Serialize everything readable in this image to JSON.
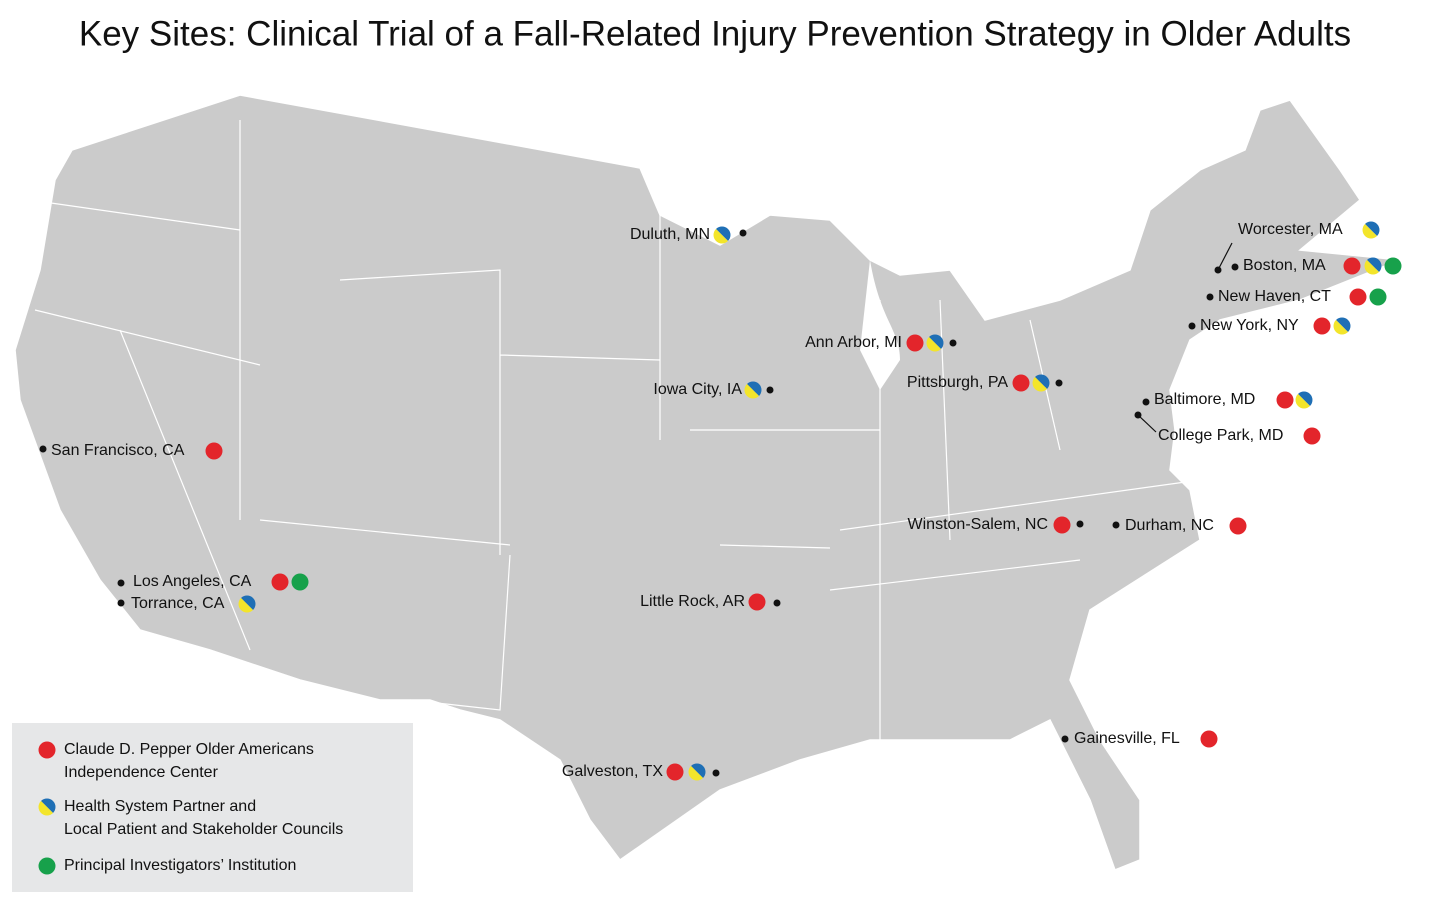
{
  "title": "Key Sites: Clinical Trial of a Fall-Related Injury Prevention Strategy in Older Adults",
  "sites": [
    "Duluth, MN",
    "Worcester, MA",
    "Boston, MA",
    "New Haven, CT",
    "New York, NY",
    "Ann Arbor, MI",
    "Iowa City, IA",
    "Pittsburgh, PA",
    "Baltimore, MD",
    "College Park, MD",
    "San Francisco, CA",
    "Winston-Salem, NC",
    "Durham, NC",
    "Los Angeles, CA",
    "Torrance, CA",
    "Little Rock, AR",
    "Gainesville, FL",
    "Galveston, TX"
  ],
  "legend": [
    {
      "lines": [
        "Claude D. Pepper Older Americans",
        "Independence Center"
      ]
    },
    {
      "lines": [
        "Health System Partner and",
        "Local Patient and Stakeholder Councils"
      ]
    },
    {
      "lines": [
        "Principal Investigators’ Institution"
      ]
    }
  ]
}
